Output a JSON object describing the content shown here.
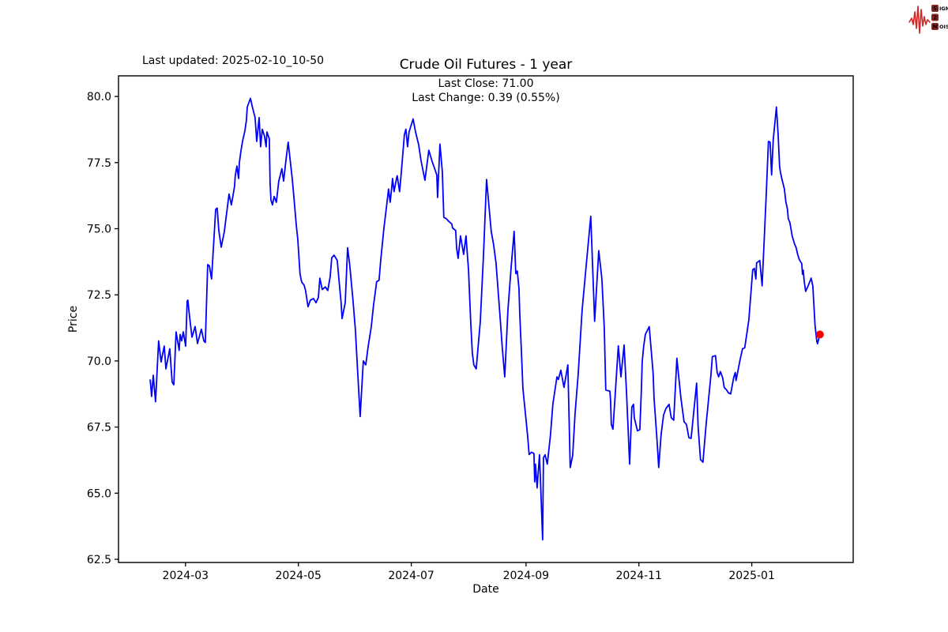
{
  "header": {
    "last_updated": "Last updated: 2025-02-10_10-50"
  },
  "logo": {
    "wave_color": "#d42525",
    "box_color": "#8b2020",
    "box_text_color": "#ffffff",
    "rows": [
      {
        "boxed": "S",
        "rest": "IGNAL"
      },
      {
        "boxed": "2",
        "rest": ""
      },
      {
        "boxed": "N",
        "rest": "OISE"
      }
    ]
  },
  "chart_data": {
    "type": "line",
    "title": "Crude Oil Futures - 1 year",
    "annotation_line1": "Last Close: 71.00",
    "annotation_line2": "Last Change: 0.39 (0.55%)",
    "xlabel": "Date",
    "ylabel": "Price",
    "line_color": "#0000ff",
    "marker_color": "#ff0000",
    "frame_color": "#000000",
    "grid": false,
    "legend": "none",
    "start_date_day0": "2024-02-10",
    "xlim_days": [
      -16.2,
      380.8
    ],
    "ylim": [
      62.38,
      80.78
    ],
    "y_ticks": [
      {
        "value": 80.0,
        "label": "80.0"
      },
      {
        "value": 77.5,
        "label": "77.5"
      },
      {
        "value": 75.0,
        "label": "75.0"
      },
      {
        "value": 72.5,
        "label": "72.5"
      },
      {
        "value": 70.0,
        "label": "70.0"
      },
      {
        "value": 67.5,
        "label": "67.5"
      },
      {
        "value": 65.0,
        "label": "65.0"
      },
      {
        "value": 62.5,
        "label": "62.5"
      }
    ],
    "x_ticks": [
      {
        "day": 20,
        "label": "2024-03"
      },
      {
        "day": 81,
        "label": "2024-05"
      },
      {
        "day": 142,
        "label": "2024-07"
      },
      {
        "day": 204,
        "label": "2024-09"
      },
      {
        "day": 265,
        "label": "2024-11"
      },
      {
        "day": 326,
        "label": "2025-01"
      }
    ],
    "last_point": {
      "day": 362.8,
      "price": 71.0
    },
    "points": [
      [
        0.9,
        69.3
      ],
      [
        1.7,
        68.66
      ],
      [
        2.6,
        69.46
      ],
      [
        3.8,
        68.46
      ],
      [
        5.5,
        70.76
      ],
      [
        6.8,
        69.96
      ],
      [
        8.5,
        70.56
      ],
      [
        9.4,
        69.7
      ],
      [
        11.5,
        70.46
      ],
      [
        12.8,
        69.2
      ],
      [
        13.7,
        69.1
      ],
      [
        14.9,
        71.1
      ],
      [
        16.6,
        70.4
      ],
      [
        17.1,
        71.0
      ],
      [
        17.9,
        70.76
      ],
      [
        18.8,
        71.1
      ],
      [
        20.1,
        70.56
      ],
      [
        20.9,
        72.26
      ],
      [
        21.3,
        72.3
      ],
      [
        22.2,
        71.66
      ],
      [
        23.5,
        70.9
      ],
      [
        25.2,
        71.3
      ],
      [
        26.5,
        70.66
      ],
      [
        28.6,
        71.2
      ],
      [
        29.9,
        70.76
      ],
      [
        30.7,
        70.7
      ],
      [
        32.0,
        73.64
      ],
      [
        32.9,
        73.6
      ],
      [
        34.1,
        73.1
      ],
      [
        36.3,
        75.73
      ],
      [
        37.1,
        75.78
      ],
      [
        38.0,
        74.93
      ],
      [
        39.3,
        74.3
      ],
      [
        41.0,
        74.9
      ],
      [
        43.5,
        76.31
      ],
      [
        44.8,
        75.9
      ],
      [
        46.5,
        76.6
      ],
      [
        46.9,
        77.0
      ],
      [
        47.8,
        77.37
      ],
      [
        48.7,
        76.9
      ],
      [
        49.1,
        77.5
      ],
      [
        49.9,
        77.9
      ],
      [
        50.8,
        78.3
      ],
      [
        52.1,
        78.7
      ],
      [
        52.9,
        79.1
      ],
      [
        53.4,
        79.6
      ],
      [
        55.1,
        79.93
      ],
      [
        56.3,
        79.56
      ],
      [
        57.6,
        79.2
      ],
      [
        58.5,
        78.3
      ],
      [
        59.8,
        79.2
      ],
      [
        60.6,
        78.1
      ],
      [
        61.5,
        78.76
      ],
      [
        62.7,
        78.5
      ],
      [
        63.6,
        78.1
      ],
      [
        64.0,
        78.66
      ],
      [
        65.3,
        78.4
      ],
      [
        65.7,
        76.7
      ],
      [
        66.2,
        76.08
      ],
      [
        67.0,
        75.9
      ],
      [
        67.9,
        76.22
      ],
      [
        69.1,
        76.0
      ],
      [
        70.4,
        76.8
      ],
      [
        72.1,
        77.27
      ],
      [
        73.0,
        76.8
      ],
      [
        74.3,
        77.6
      ],
      [
        75.5,
        78.27
      ],
      [
        77.7,
        76.87
      ],
      [
        78.5,
        76.27
      ],
      [
        79.8,
        75.18
      ],
      [
        80.7,
        74.58
      ],
      [
        81.9,
        73.28
      ],
      [
        82.8,
        72.98
      ],
      [
        84.1,
        72.86
      ],
      [
        84.9,
        72.66
      ],
      [
        86.2,
        72.05
      ],
      [
        87.5,
        72.3
      ],
      [
        89.2,
        72.36
      ],
      [
        90.5,
        72.2
      ],
      [
        91.8,
        72.4
      ],
      [
        92.6,
        73.13
      ],
      [
        93.9,
        72.7
      ],
      [
        95.6,
        72.8
      ],
      [
        96.9,
        72.66
      ],
      [
        98.2,
        73.2
      ],
      [
        99.0,
        73.9
      ],
      [
        100.3,
        74.0
      ],
      [
        102.0,
        73.8
      ],
      [
        103.3,
        72.8
      ],
      [
        104.1,
        72.2
      ],
      [
        104.6,
        71.6
      ],
      [
        106.3,
        72.2
      ],
      [
        107.6,
        74.28
      ],
      [
        108.8,
        73.6
      ],
      [
        110.5,
        72.3
      ],
      [
        111.8,
        71.2
      ],
      [
        113.1,
        69.5
      ],
      [
        114.4,
        67.9
      ],
      [
        116.1,
        70.0
      ],
      [
        117.4,
        69.85
      ],
      [
        118.6,
        70.5
      ],
      [
        120.4,
        71.3
      ],
      [
        121.6,
        72.1
      ],
      [
        123.3,
        73.0
      ],
      [
        124.6,
        73.05
      ],
      [
        125.5,
        73.8
      ],
      [
        127.2,
        75.0
      ],
      [
        128.9,
        76.0
      ],
      [
        129.7,
        76.5
      ],
      [
        130.6,
        76.0
      ],
      [
        131.5,
        76.6
      ],
      [
        131.9,
        76.9
      ],
      [
        132.7,
        76.4
      ],
      [
        134.0,
        76.9
      ],
      [
        134.4,
        77.0
      ],
      [
        135.7,
        76.4
      ],
      [
        136.6,
        77.1
      ],
      [
        138.3,
        78.56
      ],
      [
        139.1,
        78.76
      ],
      [
        140.0,
        78.1
      ],
      [
        140.8,
        78.66
      ],
      [
        143.0,
        79.15
      ],
      [
        144.3,
        78.66
      ],
      [
        146.0,
        78.17
      ],
      [
        147.2,
        77.6
      ],
      [
        149.4,
        76.83
      ],
      [
        151.5,
        77.97
      ],
      [
        153.2,
        77.56
      ],
      [
        154.5,
        77.3
      ],
      [
        155.8,
        77.03
      ],
      [
        156.2,
        76.18
      ],
      [
        157.5,
        78.2
      ],
      [
        158.8,
        77.16
      ],
      [
        159.6,
        75.43
      ],
      [
        160.9,
        75.38
      ],
      [
        162.2,
        75.28
      ],
      [
        163.9,
        75.18
      ],
      [
        164.3,
        75.03
      ],
      [
        166.0,
        74.93
      ],
      [
        166.5,
        74.28
      ],
      [
        167.3,
        73.88
      ],
      [
        168.6,
        74.73
      ],
      [
        170.3,
        74.03
      ],
      [
        171.6,
        74.73
      ],
      [
        172.4,
        73.93
      ],
      [
        172.9,
        73.48
      ],
      [
        174.1,
        71.5
      ],
      [
        175.0,
        70.3
      ],
      [
        175.8,
        69.85
      ],
      [
        177.1,
        69.7
      ],
      [
        179.3,
        71.5
      ],
      [
        181.0,
        74.0
      ],
      [
        182.7,
        76.86
      ],
      [
        185.2,
        74.9
      ],
      [
        186.5,
        74.4
      ],
      [
        187.8,
        73.7
      ],
      [
        189.5,
        72.1
      ],
      [
        189.9,
        71.75
      ],
      [
        191.2,
        70.5
      ],
      [
        192.5,
        69.4
      ],
      [
        194.2,
        71.9
      ],
      [
        195.9,
        73.5
      ],
      [
        197.6,
        74.9
      ],
      [
        198.5,
        73.3
      ],
      [
        199.3,
        73.4
      ],
      [
        200.2,
        72.75
      ],
      [
        200.6,
        71.8
      ],
      [
        201.5,
        70.36
      ],
      [
        202.3,
        68.96
      ],
      [
        203.6,
        68.06
      ],
      [
        204.9,
        67.16
      ],
      [
        205.7,
        66.46
      ],
      [
        207.0,
        66.55
      ],
      [
        208.3,
        66.5
      ],
      [
        208.7,
        65.43
      ],
      [
        209.1,
        66.1
      ],
      [
        210.0,
        65.2
      ],
      [
        211.3,
        66.45
      ],
      [
        213.0,
        63.24
      ],
      [
        213.4,
        66.34
      ],
      [
        214.3,
        66.45
      ],
      [
        215.5,
        66.1
      ],
      [
        217.2,
        67.2
      ],
      [
        218.5,
        68.36
      ],
      [
        220.7,
        69.4
      ],
      [
        221.5,
        69.3
      ],
      [
        222.8,
        69.65
      ],
      [
        224.5,
        69.0
      ],
      [
        226.6,
        69.85
      ],
      [
        227.9,
        65.97
      ],
      [
        229.2,
        66.42
      ],
      [
        230.5,
        68.0
      ],
      [
        232.2,
        69.5
      ],
      [
        234.3,
        71.9
      ],
      [
        236.4,
        73.5
      ],
      [
        239.0,
        75.47
      ],
      [
        241.1,
        71.5
      ],
      [
        243.3,
        74.17
      ],
      [
        245.0,
        73.1
      ],
      [
        246.3,
        71.25
      ],
      [
        247.1,
        68.9
      ],
      [
        249.3,
        68.86
      ],
      [
        249.7,
        68.5
      ],
      [
        250.1,
        67.6
      ],
      [
        251.0,
        67.42
      ],
      [
        253.9,
        70.57
      ],
      [
        255.3,
        69.4
      ],
      [
        257.0,
        70.6
      ],
      [
        258.3,
        68.85
      ],
      [
        260.0,
        66.1
      ],
      [
        261.2,
        68.26
      ],
      [
        262.1,
        68.36
      ],
      [
        262.5,
        67.85
      ],
      [
        264.2,
        67.36
      ],
      [
        265.5,
        67.4
      ],
      [
        266.3,
        68.85
      ],
      [
        266.8,
        69.96
      ],
      [
        267.6,
        70.56
      ],
      [
        268.5,
        71.0
      ],
      [
        270.6,
        71.3
      ],
      [
        271.9,
        70.2
      ],
      [
        272.7,
        69.5
      ],
      [
        273.2,
        68.6
      ],
      [
        274.0,
        67.8
      ],
      [
        274.9,
        66.9
      ],
      [
        275.7,
        65.97
      ],
      [
        277.0,
        67.2
      ],
      [
        278.3,
        67.95
      ],
      [
        279.6,
        68.2
      ],
      [
        281.3,
        68.36
      ],
      [
        282.5,
        67.85
      ],
      [
        283.8,
        67.76
      ],
      [
        285.5,
        70.1
      ],
      [
        287.7,
        68.6
      ],
      [
        289.4,
        67.7
      ],
      [
        290.7,
        67.6
      ],
      [
        292.0,
        67.1
      ],
      [
        293.2,
        67.07
      ],
      [
        296.2,
        69.16
      ],
      [
        297.0,
        67.5
      ],
      [
        298.3,
        66.27
      ],
      [
        299.6,
        66.17
      ],
      [
        301.3,
        67.6
      ],
      [
        303.9,
        69.46
      ],
      [
        304.7,
        70.16
      ],
      [
        306.4,
        70.2
      ],
      [
        307.3,
        69.56
      ],
      [
        308.1,
        69.4
      ],
      [
        309.0,
        69.6
      ],
      [
        310.3,
        69.36
      ],
      [
        311.1,
        69.0
      ],
      [
        312.4,
        68.9
      ],
      [
        313.3,
        68.8
      ],
      [
        314.6,
        68.75
      ],
      [
        316.3,
        69.4
      ],
      [
        317.1,
        69.56
      ],
      [
        317.5,
        69.26
      ],
      [
        319.7,
        70.06
      ],
      [
        321.0,
        70.46
      ],
      [
        322.2,
        70.5
      ],
      [
        324.4,
        71.55
      ],
      [
        326.5,
        73.45
      ],
      [
        327.4,
        73.5
      ],
      [
        328.2,
        73.1
      ],
      [
        328.6,
        73.7
      ],
      [
        330.3,
        73.8
      ],
      [
        331.6,
        72.84
      ],
      [
        333.8,
        76.28
      ],
      [
        335.0,
        78.3
      ],
      [
        335.9,
        78.27
      ],
      [
        336.7,
        77.03
      ],
      [
        337.6,
        78.37
      ],
      [
        339.3,
        79.6
      ],
      [
        340.2,
        78.6
      ],
      [
        341.0,
        77.37
      ],
      [
        341.4,
        77.17
      ],
      [
        342.3,
        76.87
      ],
      [
        343.6,
        76.5
      ],
      [
        344.4,
        76.03
      ],
      [
        345.3,
        75.73
      ],
      [
        345.7,
        75.38
      ],
      [
        346.6,
        75.23
      ],
      [
        347.8,
        74.73
      ],
      [
        349.1,
        74.43
      ],
      [
        350.0,
        74.28
      ],
      [
        350.8,
        74.03
      ],
      [
        351.7,
        73.83
      ],
      [
        353.0,
        73.68
      ],
      [
        353.4,
        73.28
      ],
      [
        353.8,
        73.43
      ],
      [
        354.3,
        73.03
      ],
      [
        355.1,
        72.63
      ],
      [
        356.4,
        72.83
      ],
      [
        358.1,
        73.13
      ],
      [
        359.0,
        72.83
      ],
      [
        360.2,
        71.35
      ],
      [
        361.1,
        70.75
      ],
      [
        361.5,
        70.65
      ],
      [
        362.8,
        71.0
      ]
    ]
  }
}
